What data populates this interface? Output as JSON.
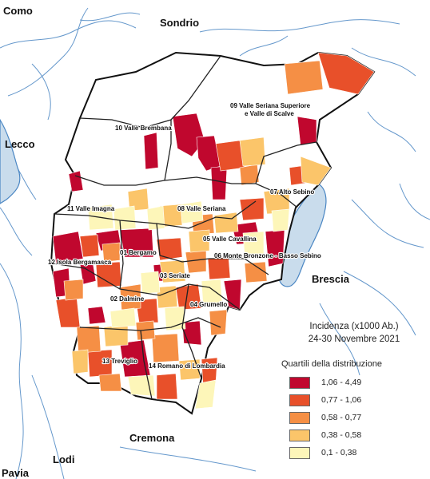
{
  "neighbors": {
    "como": "Como",
    "sondrio": "Sondrio",
    "lecco": "Lecco",
    "brescia": "Brescia",
    "cremona": "Cremona",
    "lodi": "Lodi",
    "pavia": "Pavia"
  },
  "districts": [
    {
      "id": "d01",
      "label": "01 Bergamo"
    },
    {
      "id": "d02",
      "label": "02 Dalmine"
    },
    {
      "id": "d03",
      "label": "03 Seriate"
    },
    {
      "id": "d04",
      "label": "04 Grumello"
    },
    {
      "id": "d05",
      "label": "05 Valle Cavallina"
    },
    {
      "id": "d06",
      "label": "06 Monte Bronzone - Basso Sebino"
    },
    {
      "id": "d07",
      "label": "07 Alto Sebino"
    },
    {
      "id": "d08",
      "label": "08 Valle Seriana"
    },
    {
      "id": "d09a",
      "label": "09 Valle Seriana Superiore"
    },
    {
      "id": "d09b",
      "label": "e Valle di Scalve"
    },
    {
      "id": "d10",
      "label": "10 Valle Brembana"
    },
    {
      "id": "d11",
      "label": "11 Valle Imagna"
    },
    {
      "id": "d12",
      "label": "12 Isola Bergamasca"
    },
    {
      "id": "d13",
      "label": "13 Treviglio"
    },
    {
      "id": "d14",
      "label": "14 Romano di Lombardia"
    }
  ],
  "legend": {
    "title_line1": "Incidenza (x1000 Ab.)",
    "title_line2": "24-30 Novembre 2021",
    "subtitle": "Quartili della distribuzione",
    "classes": [
      {
        "range": "1,06 - 4,49",
        "color": "#c0072e"
      },
      {
        "range": "0,77 - 1,06",
        "color": "#e8502a"
      },
      {
        "range": "0,58 - 0,77",
        "color": "#f58f45"
      },
      {
        "range": "0,38 - 0,58",
        "color": "#fbc56a"
      },
      {
        "range": "0,1 - 0,38",
        "color": "#fdf6b9"
      }
    ]
  },
  "colors": {
    "lake": "#c9dcec",
    "river": "#4a86c3",
    "district_border": "#222222"
  }
}
